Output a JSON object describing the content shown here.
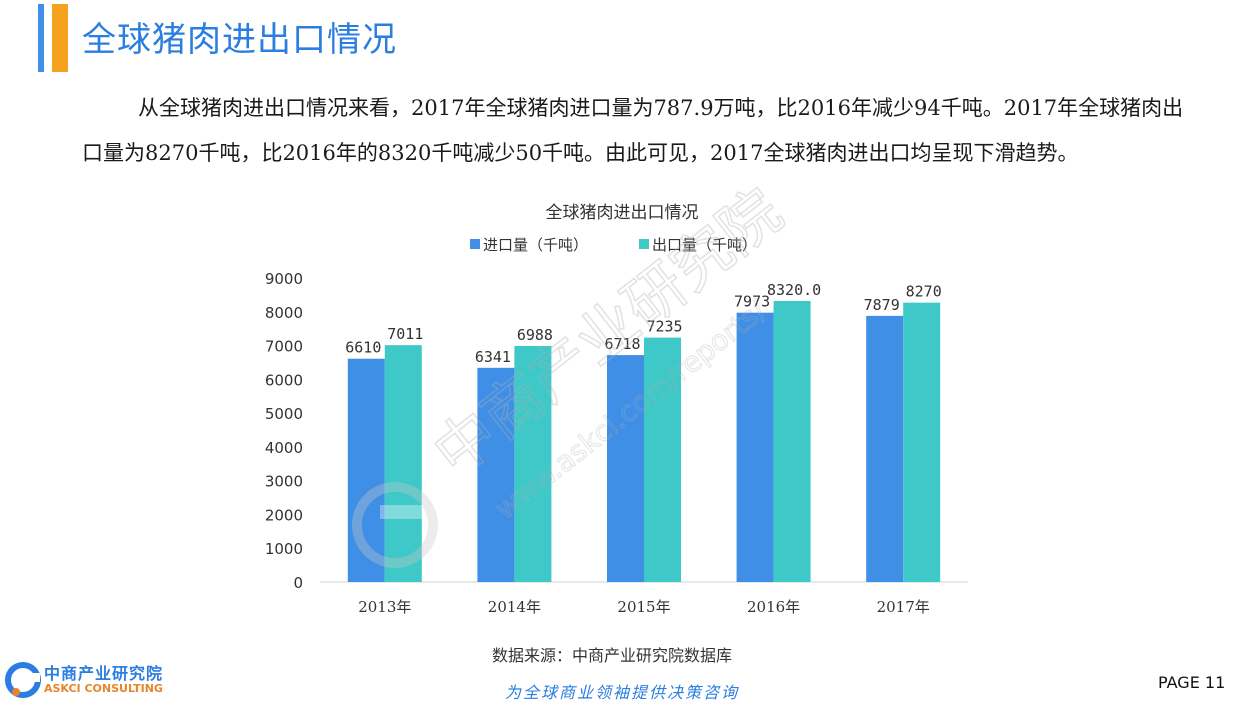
{
  "header": {
    "title": "全球猪肉进出口情况"
  },
  "intro": {
    "text": "从全球猪肉进出口情况来看，2017年全球猪肉进口量为787.9万吨，比2016年减少94千吨。2017年全球猪肉出口量为8270千吨，比2016年的8320千吨减少50千吨。由此可见，2017全球猪肉进出口均呈现下滑趋势。"
  },
  "chart_data": {
    "type": "bar",
    "title": "全球猪肉进出口情况",
    "categories": [
      "2013年",
      "2014年",
      "2015年",
      "2016年",
      "2017年"
    ],
    "series": [
      {
        "name": "进口量（千吨）",
        "values": [
          6610,
          6341,
          6718,
          7973,
          7879
        ],
        "labels": [
          "6610",
          "6341",
          "6718",
          "7973",
          "7879"
        ],
        "color": "#3f8fe6"
      },
      {
        "name": "出口量（千吨）",
        "values": [
          7011,
          6988,
          7235,
          8320,
          8270
        ],
        "labels": [
          "7011",
          "6988",
          "7235",
          "8320.0",
          "8270"
        ],
        "color": "#3ec8c8"
      }
    ],
    "ylim": [
      0,
      9000
    ],
    "yticks": [
      "0",
      "1000",
      "2000",
      "3000",
      "4000",
      "5000",
      "6000",
      "7000",
      "8000",
      "9000"
    ],
    "legend_position": "top",
    "grid": false
  },
  "footer": {
    "source": "数据来源：中商产业研究院数据库",
    "slogan": "为全球商业领袖提供决策咨询",
    "page": "PAGE 11",
    "logo_cn": "中商产业研究院",
    "logo_en": "ASKCI CONSULTING"
  },
  "watermark": {
    "cn": "中商产业研究院",
    "url": "www.askci.com/reports/"
  },
  "colors": {
    "accent_blue": "#2a7de1",
    "accent_orange": "#f5a21f"
  }
}
